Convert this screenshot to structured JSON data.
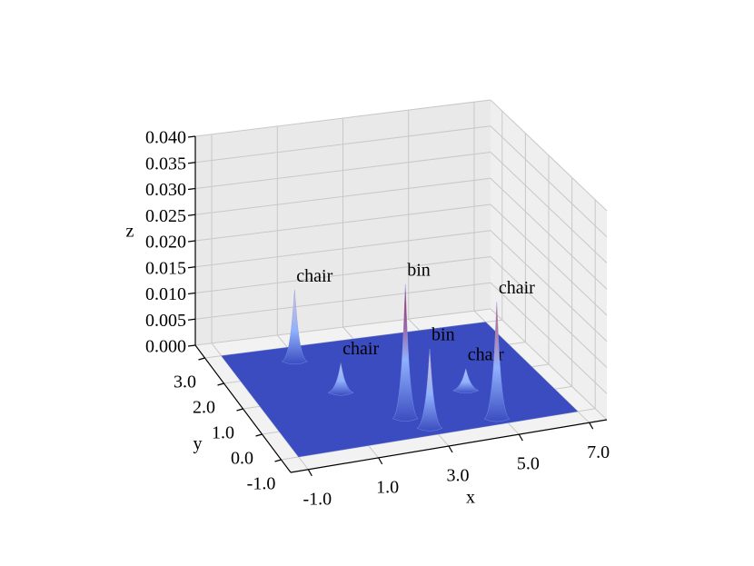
{
  "chart_data": {
    "type": "surface3d",
    "xlabel": "x",
    "ylabel": "y",
    "zlabel": "z",
    "xlim": [
      -1.5,
      7.5
    ],
    "ylim": [
      -1.5,
      3.5
    ],
    "zlim": [
      0,
      0.04
    ],
    "xticks": [
      {
        "value": -1,
        "label": "-1.0"
      },
      {
        "value": 1,
        "label": "1.0"
      },
      {
        "value": 3,
        "label": "3.0"
      },
      {
        "value": 5,
        "label": "5.0"
      },
      {
        "value": 7,
        "label": "7.0"
      }
    ],
    "yticks": [
      {
        "value": -1,
        "label": "-1.0"
      },
      {
        "value": 0,
        "label": "0.0"
      },
      {
        "value": 1,
        "label": "1.0"
      },
      {
        "value": 2,
        "label": "2.0"
      },
      {
        "value": 3,
        "label": "3.0"
      }
    ],
    "zticks": [
      {
        "value": 0,
        "label": "0.000"
      },
      {
        "value": 0.005,
        "label": "0.005"
      },
      {
        "value": 0.01,
        "label": "0.010"
      },
      {
        "value": 0.015,
        "label": "0.015"
      },
      {
        "value": 0.02,
        "label": "0.020"
      },
      {
        "value": 0.025,
        "label": "0.025"
      },
      {
        "value": 0.03,
        "label": "0.030"
      },
      {
        "value": 0.035,
        "label": "0.035"
      },
      {
        "value": 0.04,
        "label": "0.040"
      }
    ],
    "grid": true,
    "surface_color": "#3b4cc0",
    "peaks": [
      {
        "label": "chair",
        "x": 0.96,
        "y": 2.58,
        "z": 0.013
      },
      {
        "label": "chair",
        "x": 1.5,
        "y": 1.2,
        "z": 0.005
      },
      {
        "label": "bin",
        "x": 2.6,
        "y": -0.1,
        "z": 0.025
      },
      {
        "label": "bin",
        "x": 3.0,
        "y": -0.6,
        "z": 0.0145
      },
      {
        "label": "chair",
        "x": 4.9,
        "y": -0.65,
        "z": 0.0217
      },
      {
        "label": "chair",
        "x": 4.8,
        "y": 0.6,
        "z": 0.0035
      }
    ]
  }
}
